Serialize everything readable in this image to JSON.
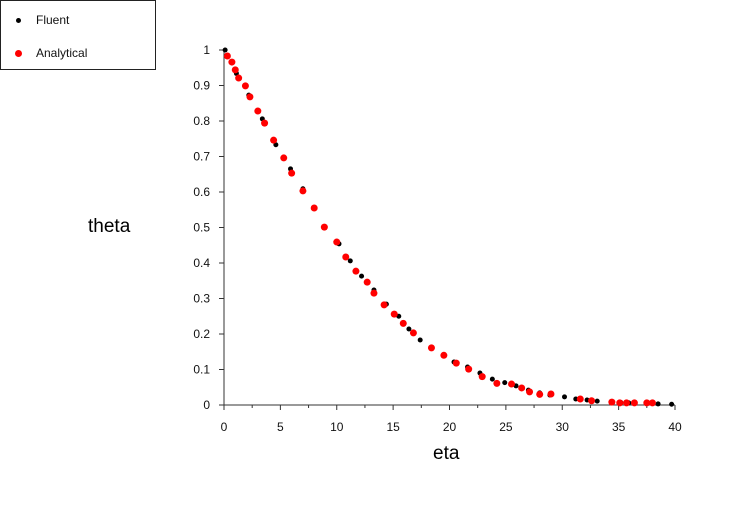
{
  "chart_data": {
    "type": "scatter",
    "title": "",
    "xlabel": "eta",
    "ylabel": "theta",
    "xlim": [
      0,
      40
    ],
    "ylim": [
      0,
      1
    ],
    "xticks": [
      0,
      5,
      10,
      15,
      20,
      25,
      30,
      35,
      40
    ],
    "yticks": [
      0,
      0.1,
      0.2,
      0.3,
      0.4,
      0.5,
      0.6,
      0.7,
      0.8,
      0.9,
      1
    ],
    "grid": false,
    "legend_position": "top-left (outside plot)",
    "series": [
      {
        "name": "Fluent",
        "color": "#000000",
        "marker_size": 2.5,
        "points": [
          [
            0.1,
            1.0
          ],
          [
            1.1,
            0.934
          ],
          [
            2.2,
            0.873
          ],
          [
            3.4,
            0.806
          ],
          [
            4.6,
            0.733
          ],
          [
            5.9,
            0.665
          ],
          [
            7.0,
            0.609
          ],
          [
            10.2,
            0.454
          ],
          [
            11.2,
            0.406
          ],
          [
            12.2,
            0.363
          ],
          [
            13.3,
            0.324
          ],
          [
            14.4,
            0.284
          ],
          [
            15.5,
            0.25
          ],
          [
            16.4,
            0.214
          ],
          [
            17.4,
            0.183
          ],
          [
            20.4,
            0.121
          ],
          [
            21.6,
            0.107
          ],
          [
            22.7,
            0.09
          ],
          [
            23.8,
            0.073
          ],
          [
            24.9,
            0.063
          ],
          [
            25.9,
            0.054
          ],
          [
            27.0,
            0.042
          ],
          [
            28.0,
            0.034
          ],
          [
            28.9,
            0.028
          ],
          [
            30.2,
            0.023
          ],
          [
            31.2,
            0.017
          ],
          [
            32.2,
            0.014
          ],
          [
            33.1,
            0.011
          ],
          [
            34.4,
            0.008
          ],
          [
            35.2,
            0.007
          ],
          [
            35.9,
            0.006
          ],
          [
            38.5,
            0.003
          ],
          [
            39.7,
            0.002
          ]
        ]
      },
      {
        "name": "Analytical",
        "color": "#ff0000",
        "marker_size": 3.5,
        "points": [
          [
            0.3,
            0.983
          ],
          [
            0.7,
            0.966
          ],
          [
            1.0,
            0.944
          ],
          [
            1.3,
            0.921
          ],
          [
            1.9,
            0.899
          ],
          [
            2.3,
            0.868
          ],
          [
            3.0,
            0.828
          ],
          [
            3.6,
            0.794
          ],
          [
            4.4,
            0.746
          ],
          [
            5.3,
            0.696
          ],
          [
            6.0,
            0.653
          ],
          [
            7.0,
            0.603
          ],
          [
            8.0,
            0.555
          ],
          [
            8.9,
            0.501
          ],
          [
            10.0,
            0.459
          ],
          [
            10.8,
            0.417
          ],
          [
            11.7,
            0.377
          ],
          [
            12.7,
            0.346
          ],
          [
            13.3,
            0.315
          ],
          [
            14.2,
            0.282
          ],
          [
            15.1,
            0.256
          ],
          [
            15.9,
            0.23
          ],
          [
            16.8,
            0.203
          ],
          [
            18.4,
            0.161
          ],
          [
            19.5,
            0.14
          ],
          [
            20.6,
            0.118
          ],
          [
            21.7,
            0.101
          ],
          [
            22.9,
            0.08
          ],
          [
            24.2,
            0.061
          ],
          [
            25.5,
            0.059
          ],
          [
            26.4,
            0.048
          ],
          [
            27.1,
            0.037
          ],
          [
            28.0,
            0.03
          ],
          [
            29.0,
            0.031
          ],
          [
            31.6,
            0.017
          ],
          [
            32.6,
            0.012
          ],
          [
            34.4,
            0.008
          ],
          [
            35.1,
            0.006
          ],
          [
            35.7,
            0.006
          ],
          [
            36.4,
            0.006
          ],
          [
            37.5,
            0.006
          ],
          [
            38.0,
            0.006
          ]
        ]
      }
    ]
  },
  "legend": {
    "items": [
      {
        "label": "Fluent",
        "color": "#000000"
      },
      {
        "label": "Analytical",
        "color": "#ff0000"
      }
    ]
  }
}
